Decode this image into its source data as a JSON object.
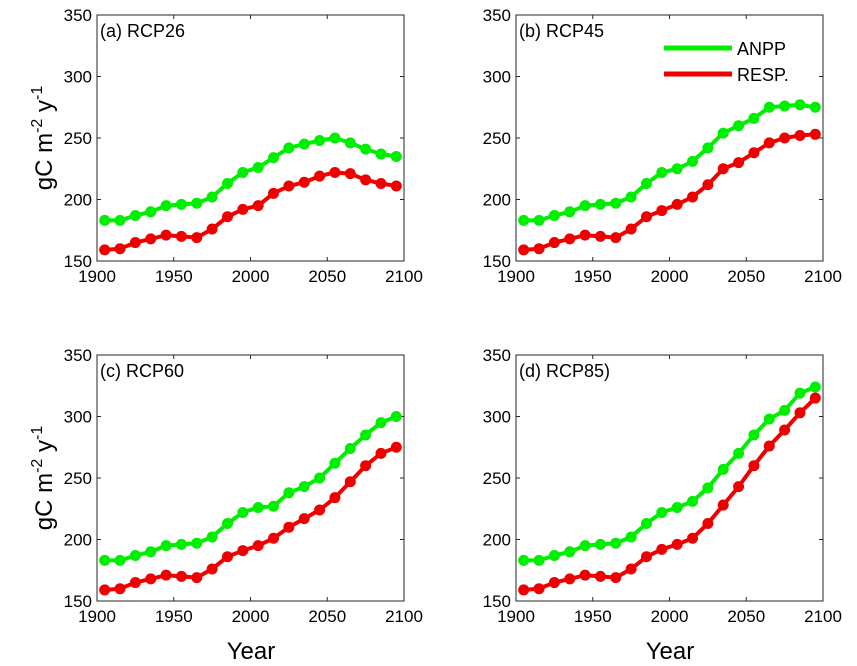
{
  "figure": {
    "ylabel_main": "gC m",
    "ylabel_sup1": "-2",
    "ylabel_mid": " y",
    "ylabel_sup2": "-1",
    "xlabel": "Year"
  },
  "chart_data": [
    {
      "type": "line",
      "title": "(a) RCP26",
      "xlabel": "",
      "ylabel": "",
      "xlim": [
        1900,
        2100
      ],
      "ylim": [
        150,
        350
      ],
      "xticks": [
        1900,
        1950,
        2000,
        2050,
        2100
      ],
      "yticks": [
        150,
        200,
        250,
        300,
        350
      ],
      "grid": false,
      "legend": false,
      "x": [
        1905,
        1915,
        1925,
        1935,
        1945,
        1955,
        1965,
        1975,
        1985,
        1995,
        2005,
        2015,
        2025,
        2035,
        2045,
        2055,
        2065,
        2075,
        2085,
        2095
      ],
      "series": [
        {
          "name": "",
          "color": "#00ee00",
          "values": [
            183,
            183,
            187,
            190,
            195,
            196,
            197,
            202,
            213,
            222,
            226,
            234,
            242,
            245,
            248,
            250,
            246,
            241,
            237,
            235
          ]
        },
        {
          "name": "",
          "color": "#ee0000",
          "values": [
            159,
            160,
            165,
            168,
            171,
            170,
            169,
            176,
            186,
            192,
            195,
            205,
            211,
            214,
            219,
            222,
            221,
            216,
            213,
            211
          ]
        }
      ]
    },
    {
      "type": "line",
      "title": "(b) RCP45",
      "xlabel": "",
      "ylabel": "",
      "xlim": [
        1900,
        2100
      ],
      "ylim": [
        150,
        350
      ],
      "xticks": [
        1900,
        1950,
        2000,
        2050,
        2100
      ],
      "yticks": [
        150,
        200,
        250,
        300,
        350
      ],
      "grid": false,
      "legend": true,
      "legend_position": "top-right",
      "x": [
        1905,
        1915,
        1925,
        1935,
        1945,
        1955,
        1965,
        1975,
        1985,
        1995,
        2005,
        2015,
        2025,
        2035,
        2045,
        2055,
        2065,
        2075,
        2085,
        2095
      ],
      "series": [
        {
          "name": "ANPP",
          "color": "#00ee00",
          "values": [
            183,
            183,
            187,
            190,
            195,
            196,
            197,
            202,
            213,
            222,
            225,
            231,
            242,
            254,
            260,
            266,
            275,
            276,
            277,
            275
          ]
        },
        {
          "name": "RESP.",
          "color": "#ee0000",
          "values": [
            159,
            160,
            165,
            168,
            171,
            170,
            169,
            176,
            186,
            191,
            196,
            202,
            212,
            225,
            230,
            238,
            246,
            250,
            252,
            253
          ]
        }
      ]
    },
    {
      "type": "line",
      "title": "(c) RCP60",
      "xlabel": "",
      "ylabel": "",
      "xlim": [
        1900,
        2100
      ],
      "ylim": [
        150,
        350
      ],
      "xticks": [
        1900,
        1950,
        2000,
        2050,
        2100
      ],
      "yticks": [
        150,
        200,
        250,
        300,
        350
      ],
      "grid": false,
      "legend": false,
      "x": [
        1905,
        1915,
        1925,
        1935,
        1945,
        1955,
        1965,
        1975,
        1985,
        1995,
        2005,
        2015,
        2025,
        2035,
        2045,
        2055,
        2065,
        2075,
        2085,
        2095
      ],
      "series": [
        {
          "name": "",
          "color": "#00ee00",
          "values": [
            183,
            183,
            187,
            190,
            195,
            196,
            197,
            202,
            213,
            222,
            226,
            227,
            238,
            243,
            250,
            262,
            274,
            285,
            295,
            300
          ]
        },
        {
          "name": "",
          "color": "#ee0000",
          "values": [
            159,
            160,
            165,
            168,
            171,
            170,
            169,
            176,
            186,
            191,
            195,
            201,
            210,
            217,
            224,
            234,
            247,
            260,
            270,
            275
          ]
        }
      ]
    },
    {
      "type": "line",
      "title": "(d) RCP85)",
      "xlabel": "",
      "ylabel": "",
      "xlim": [
        1900,
        2100
      ],
      "ylim": [
        150,
        350
      ],
      "xticks": [
        1900,
        1950,
        2000,
        2050,
        2100
      ],
      "yticks": [
        150,
        200,
        250,
        300,
        350
      ],
      "grid": false,
      "legend": false,
      "x": [
        1905,
        1915,
        1925,
        1935,
        1945,
        1955,
        1965,
        1975,
        1985,
        1995,
        2005,
        2015,
        2025,
        2035,
        2045,
        2055,
        2065,
        2075,
        2085,
        2095
      ],
      "series": [
        {
          "name": "",
          "color": "#00ee00",
          "values": [
            183,
            183,
            187,
            190,
            195,
            196,
            197,
            202,
            213,
            222,
            226,
            231,
            242,
            257,
            270,
            285,
            298,
            305,
            319,
            324
          ]
        },
        {
          "name": "",
          "color": "#ee0000",
          "values": [
            159,
            160,
            165,
            168,
            171,
            170,
            169,
            176,
            186,
            192,
            196,
            201,
            213,
            228,
            243,
            260,
            276,
            289,
            303,
            315
          ]
        }
      ]
    }
  ]
}
